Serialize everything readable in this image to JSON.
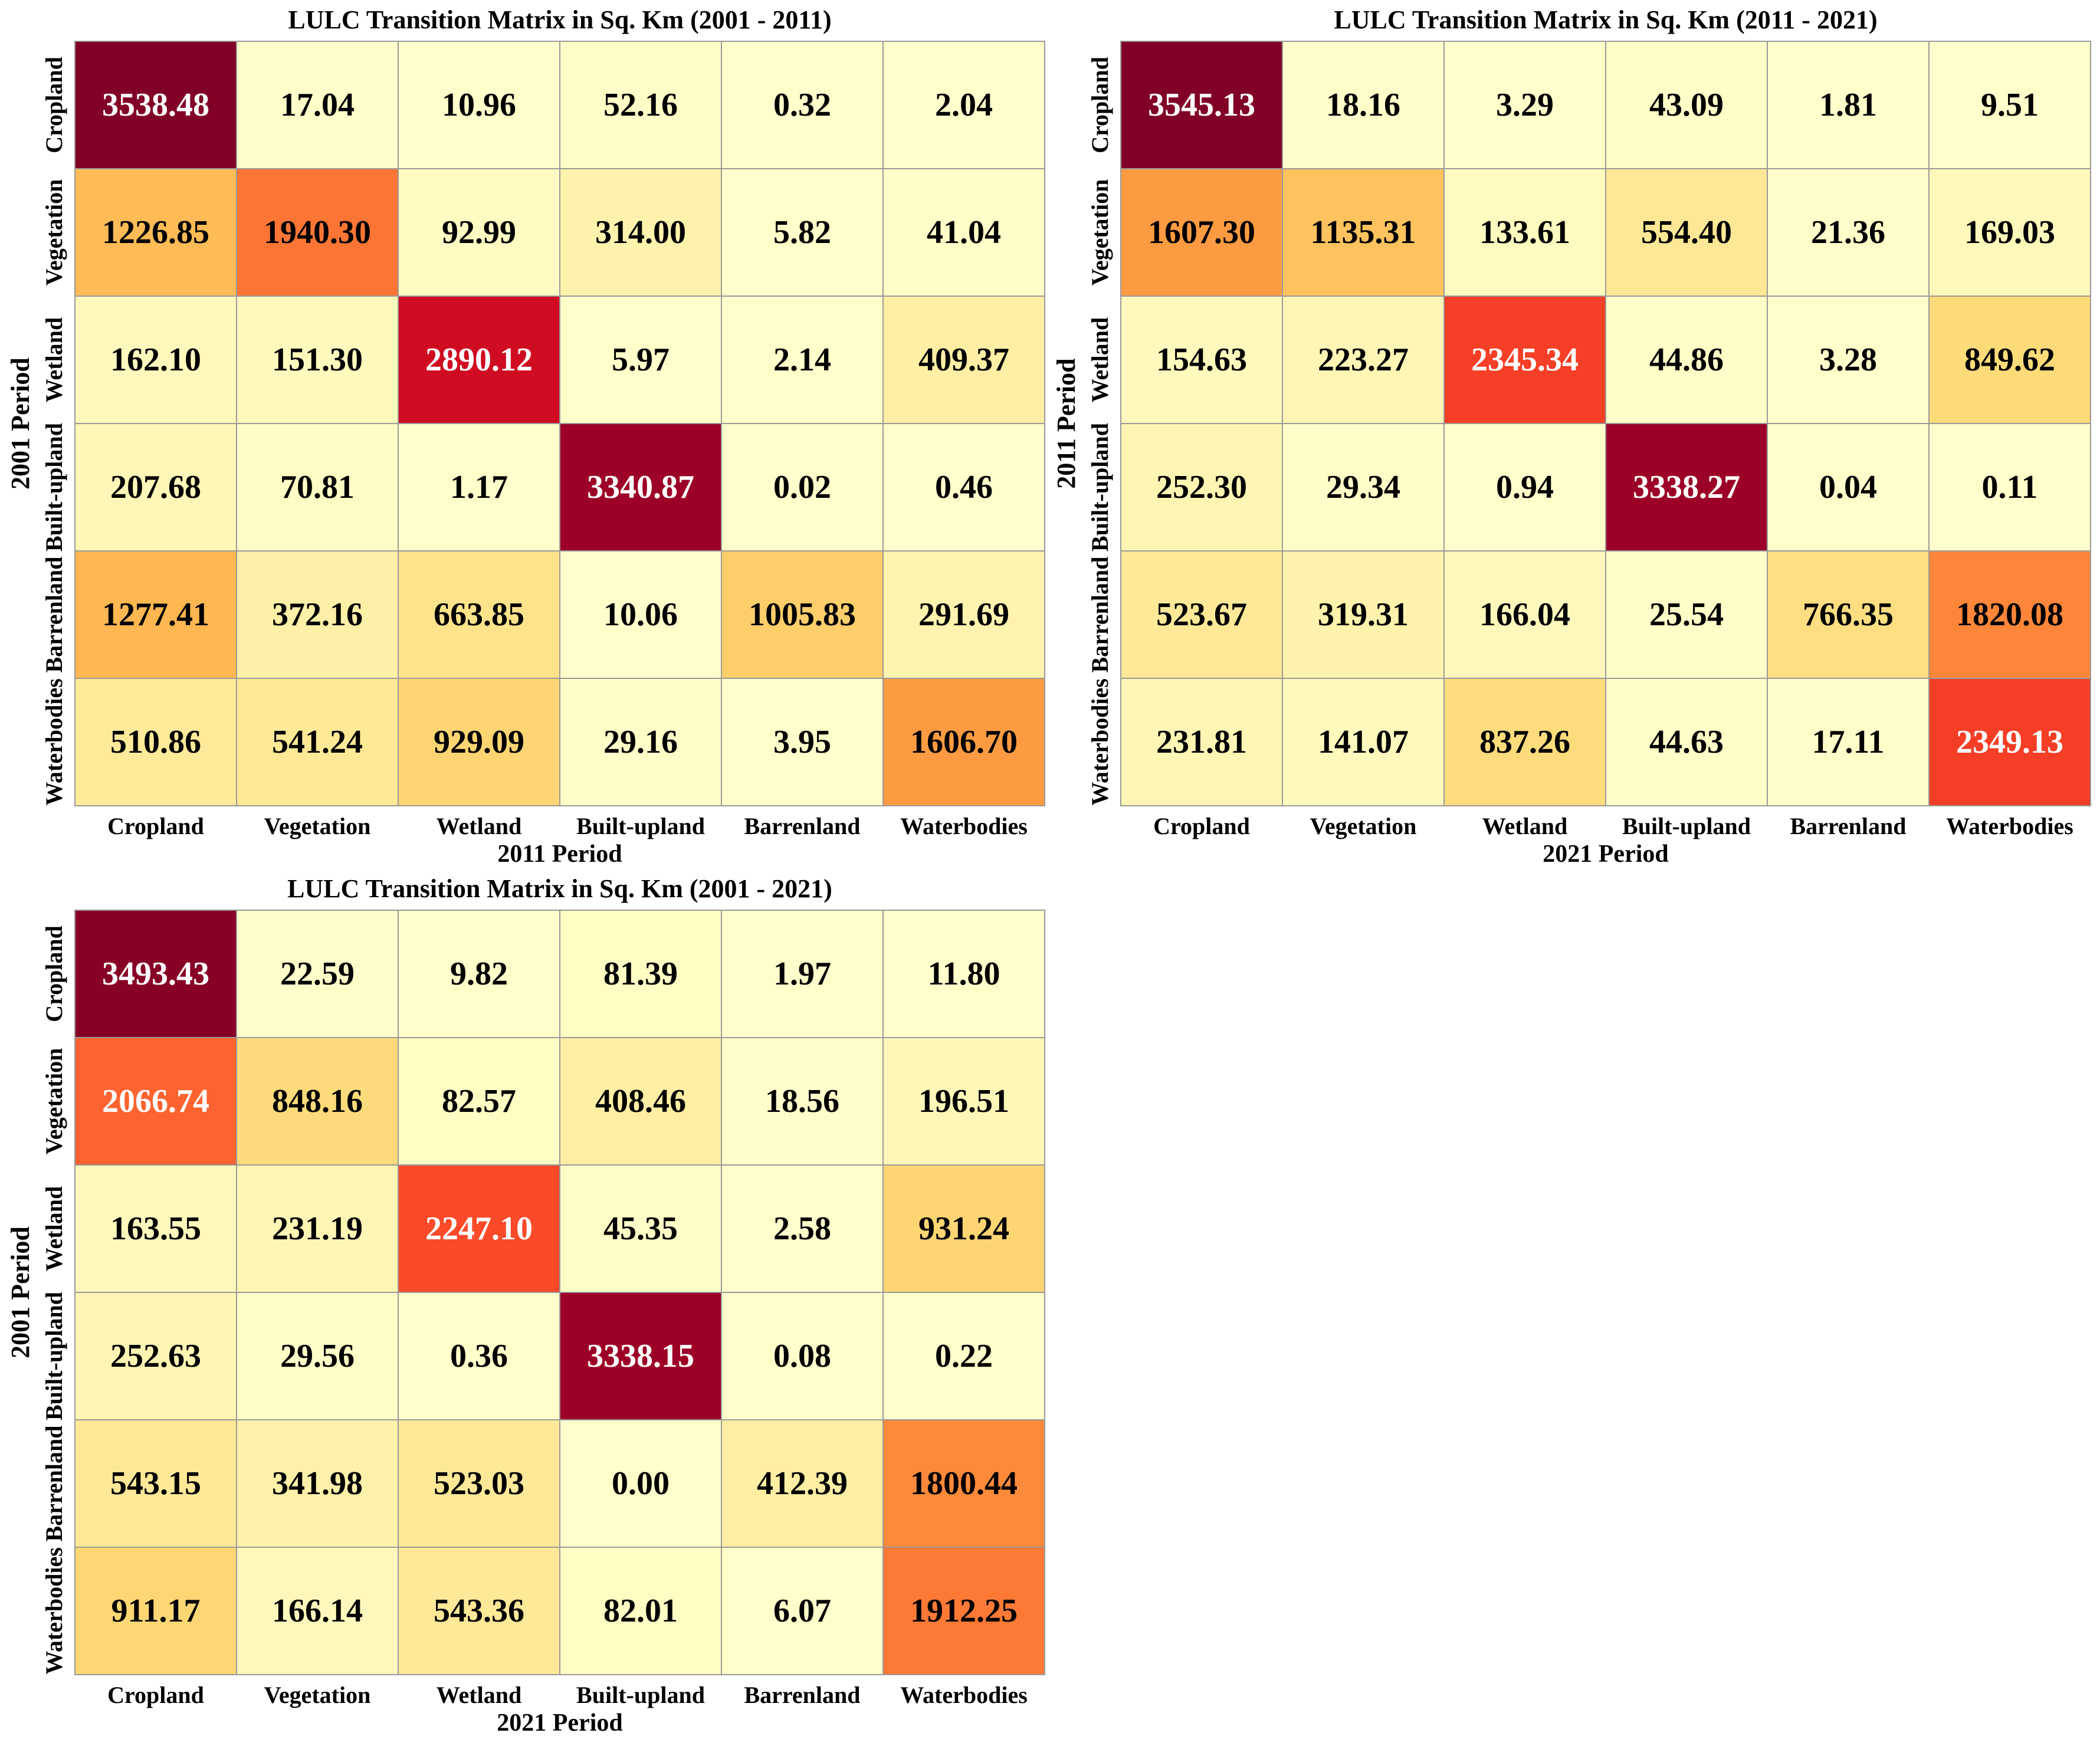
{
  "chart_data": [
    {
      "type": "heatmap",
      "title": "LULC Transition Matrix in Sq. Km (2001 - 2011)",
      "xlabel": "2011 Period",
      "ylabel": "2001 Period",
      "x_categories": [
        "Cropland",
        "Vegetation",
        "Wetland",
        "Built-upland",
        "Barrenland",
        "Waterbodies"
      ],
      "y_categories": [
        "Cropland",
        "Vegetation",
        "Wetland",
        "Built-upland",
        "Barrenland",
        "Waterbodies"
      ],
      "values": [
        [
          "3538.48",
          "17.04",
          "10.96",
          "52.16",
          "0.32",
          "2.04"
        ],
        [
          "1226.85",
          "1940.30",
          "92.99",
          "314.00",
          "5.82",
          "41.04"
        ],
        [
          "162.10",
          "151.30",
          "2890.12",
          "5.97",
          "2.14",
          "409.37"
        ],
        [
          "207.68",
          "70.81",
          "1.17",
          "3340.87",
          "0.02",
          "0.46"
        ],
        [
          "1277.41",
          "372.16",
          "663.85",
          "10.06",
          "1005.83",
          "291.69"
        ],
        [
          "510.86",
          "541.24",
          "929.09",
          "29.16",
          "3.95",
          "1606.70"
        ]
      ],
      "value_range": [
        0,
        3545.13
      ],
      "colormap": "YlOrRd"
    },
    {
      "type": "heatmap",
      "title": "LULC Transition Matrix in Sq. Km (2011 - 2021)",
      "xlabel": "2021 Period",
      "ylabel": "2011 Period",
      "x_categories": [
        "Cropland",
        "Vegetation",
        "Wetland",
        "Built-upland",
        "Barrenland",
        "Waterbodies"
      ],
      "y_categories": [
        "Cropland",
        "Vegetation",
        "Wetland",
        "Built-upland",
        "Barrenland",
        "Waterbodies"
      ],
      "values": [
        [
          "3545.13",
          "18.16",
          "3.29",
          "43.09",
          "1.81",
          "9.51"
        ],
        [
          "1607.30",
          "1135.31",
          "133.61",
          "554.40",
          "21.36",
          "169.03"
        ],
        [
          "154.63",
          "223.27",
          "2345.34",
          "44.86",
          "3.28",
          "849.62"
        ],
        [
          "252.30",
          "29.34",
          "0.94",
          "3338.27",
          "0.04",
          "0.11"
        ],
        [
          "523.67",
          "319.31",
          "166.04",
          "25.54",
          "766.35",
          "1820.08"
        ],
        [
          "231.81",
          "141.07",
          "837.26",
          "44.63",
          "17.11",
          "2349.13"
        ]
      ],
      "value_range": [
        0,
        3545.13
      ],
      "colormap": "YlOrRd"
    },
    {
      "type": "heatmap",
      "title": "LULC Transition Matrix in Sq. Km (2001 - 2021)",
      "xlabel": "2021 Period",
      "ylabel": "2001 Period",
      "x_categories": [
        "Cropland",
        "Vegetation",
        "Wetland",
        "Built-upland",
        "Barrenland",
        "Waterbodies"
      ],
      "y_categories": [
        "Cropland",
        "Vegetation",
        "Wetland",
        "Built-upland",
        "Barrenland",
        "Waterbodies"
      ],
      "values": [
        [
          "3493.43",
          "22.59",
          "9.82",
          "81.39",
          "1.97",
          "11.80"
        ],
        [
          "2066.74",
          "848.16",
          "82.57",
          "408.46",
          "18.56",
          "196.51"
        ],
        [
          "163.55",
          "231.19",
          "2247.10",
          "45.35",
          "2.58",
          "931.24"
        ],
        [
          "252.63",
          "29.56",
          "0.36",
          "3338.15",
          "0.08",
          "0.22"
        ],
        [
          "543.15",
          "341.98",
          "523.03",
          "0.00",
          "412.39",
          "1800.44"
        ],
        [
          "911.17",
          "166.14",
          "543.36",
          "82.01",
          "6.07",
          "1912.25"
        ]
      ],
      "value_range": [
        0,
        3545.13
      ],
      "colormap": "YlOrRd"
    }
  ]
}
